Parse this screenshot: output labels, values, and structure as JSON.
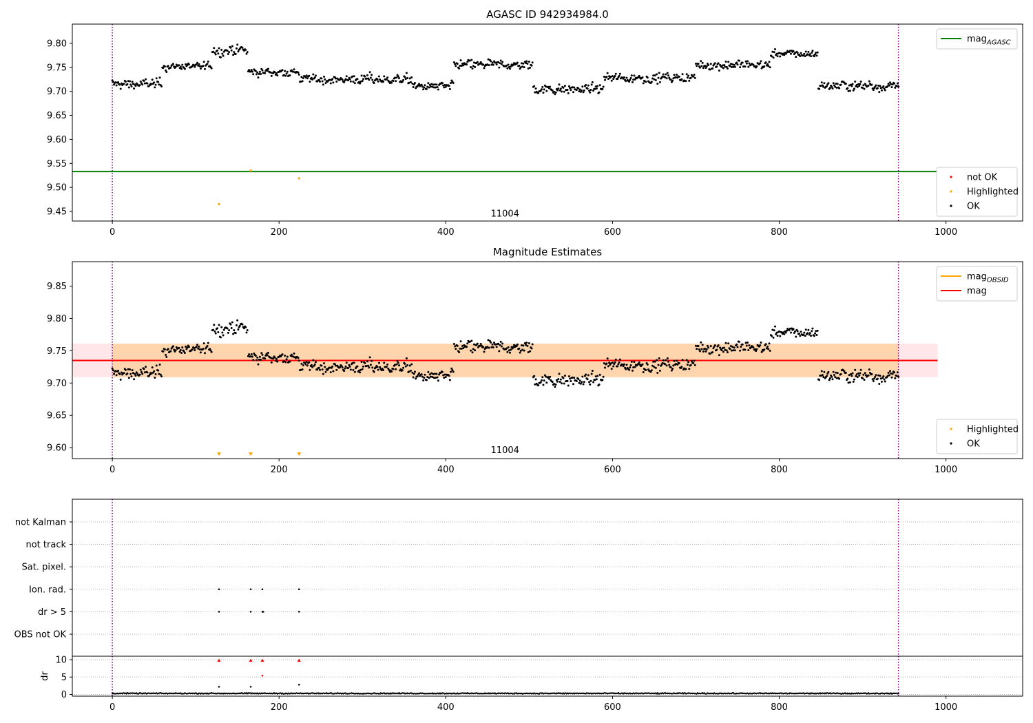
{
  "chart_data": [
    {
      "type": "scatter",
      "title": "AGASC ID 942934984.0",
      "xlim": [
        -48,
        1092
      ],
      "ylim": [
        9.43,
        9.84
      ],
      "xticks": [
        0,
        200,
        400,
        600,
        800,
        1000
      ],
      "yticks": [
        9.45,
        9.5,
        9.55,
        9.6,
        9.65,
        9.7,
        9.75,
        9.8
      ],
      "vlines": [
        0,
        943
      ],
      "obsid_label": {
        "text": "11004",
        "x": 471,
        "y": 9.445
      },
      "reference_line": {
        "name": "mag_AGASC",
        "value": 9.533,
        "color": "#008000"
      },
      "series": [
        {
          "name": "not OK",
          "color": "#ff0000",
          "points": []
        },
        {
          "name": "Highlighted",
          "color": "#ffa500",
          "points": [
            [
              128,
              9.465
            ],
            [
              166,
              9.535
            ],
            [
              224,
              9.519
            ]
          ]
        },
        {
          "name": "OK",
          "color": "#000000",
          "segments": [
            [
              0,
              60,
              9.715,
              0.012
            ],
            [
              60,
              120,
              9.752,
              0.01
            ],
            [
              120,
              163,
              9.785,
              0.012
            ],
            [
              163,
              225,
              9.74,
              0.01
            ],
            [
              225,
              360,
              9.725,
              0.012
            ],
            [
              360,
              410,
              9.71,
              0.012
            ],
            [
              410,
              505,
              9.755,
              0.012
            ],
            [
              505,
              590,
              9.705,
              0.012
            ],
            [
              590,
              700,
              9.728,
              0.012
            ],
            [
              700,
              790,
              9.755,
              0.012
            ],
            [
              790,
              847,
              9.778,
              0.01
            ],
            [
              847,
              943,
              9.712,
              0.012
            ]
          ]
        }
      ],
      "legends": [
        {
          "position": "upper right",
          "entries": [
            {
              "label": "mag",
              "sub": "AGASC",
              "kind": "line",
              "color": "#008000"
            }
          ]
        },
        {
          "position": "lower right",
          "entries": [
            {
              "label": "not OK",
              "kind": "dot",
              "color": "#ff0000"
            },
            {
              "label": "Highlighted",
              "kind": "dot",
              "color": "#ffa500"
            },
            {
              "label": "OK",
              "kind": "dot",
              "color": "#000000"
            }
          ]
        }
      ]
    },
    {
      "type": "scatter",
      "title": "Magnitude Estimates",
      "xlim": [
        -48,
        1092
      ],
      "ylim": [
        9.583,
        9.888
      ],
      "xticks": [
        0,
        200,
        400,
        600,
        800,
        1000
      ],
      "yticks": [
        9.6,
        9.65,
        9.7,
        9.75,
        9.8,
        9.85
      ],
      "vlines": [
        0,
        943
      ],
      "obsid_label": {
        "text": "11004",
        "x": 471,
        "y": 9.596
      },
      "mag_line": {
        "name": "mag",
        "value": 9.735,
        "color": "#ff0000",
        "x_end": 990
      },
      "band": {
        "low": 9.709,
        "high": 9.761,
        "x_end": 990,
        "color": "#ffb6c1"
      },
      "obsid_band": {
        "low": 9.709,
        "high": 9.761,
        "x_start": 0,
        "x_end": 943,
        "color": "#ffa500"
      },
      "obsid_line": {
        "name": "mag_OBSID",
        "value": 9.735,
        "color": "#ffa500"
      },
      "highlighted_below": [
        128,
        166,
        224
      ],
      "series": [
        {
          "name": "Highlighted",
          "color": "#ffa500"
        },
        {
          "name": "OK",
          "color": "#000000"
        }
      ],
      "legends": [
        {
          "position": "upper right",
          "entries": [
            {
              "label": "mag",
              "sub": "OBSID",
              "kind": "line",
              "color": "#ffa500"
            },
            {
              "label": "mag",
              "kind": "line",
              "color": "#ff0000"
            }
          ]
        },
        {
          "position": "lower right",
          "entries": [
            {
              "label": "Highlighted",
              "kind": "dot",
              "color": "#ffa500"
            },
            {
              "label": "OK",
              "kind": "dot",
              "color": "#000000"
            }
          ]
        }
      ]
    },
    {
      "type": "scatter",
      "title": "",
      "xlim": [
        -48,
        1092
      ],
      "xticks": [
        0,
        200,
        400,
        600,
        800,
        1000
      ],
      "vlines": [
        0,
        943
      ],
      "flag_rows": [
        "not Kalman",
        "not track",
        "Sat. pixel.",
        "Ion. rad.",
        "dr > 5",
        "OBS not OK"
      ],
      "flag_points": {
        "Ion. rad.": [
          128,
          166,
          180,
          224
        ],
        "dr > 5": [
          128,
          166,
          180,
          181,
          224
        ]
      },
      "dr_panel": {
        "ylabel": "dr",
        "ylim": [
          -0.5,
          11
        ],
        "yticks": [
          0,
          5,
          10
        ],
        "baseline_value": 0.3,
        "flagged_points": [
          {
            "x": 128,
            "y": 9.8,
            "color": "#ff0000"
          },
          {
            "x": 166,
            "y": 9.8,
            "color": "#ff0000"
          },
          {
            "x": 180,
            "y": 9.8,
            "color": "#ff0000"
          },
          {
            "x": 224,
            "y": 9.8,
            "color": "#ff0000"
          },
          {
            "x": 180,
            "y": 5.4,
            "color": "#ff0000"
          },
          {
            "x": 128,
            "y": 2.2,
            "color": "#000000"
          },
          {
            "x": 166,
            "y": 2.2,
            "color": "#000000"
          },
          {
            "x": 224,
            "y": 2.8,
            "color": "#000000"
          }
        ]
      }
    }
  ]
}
